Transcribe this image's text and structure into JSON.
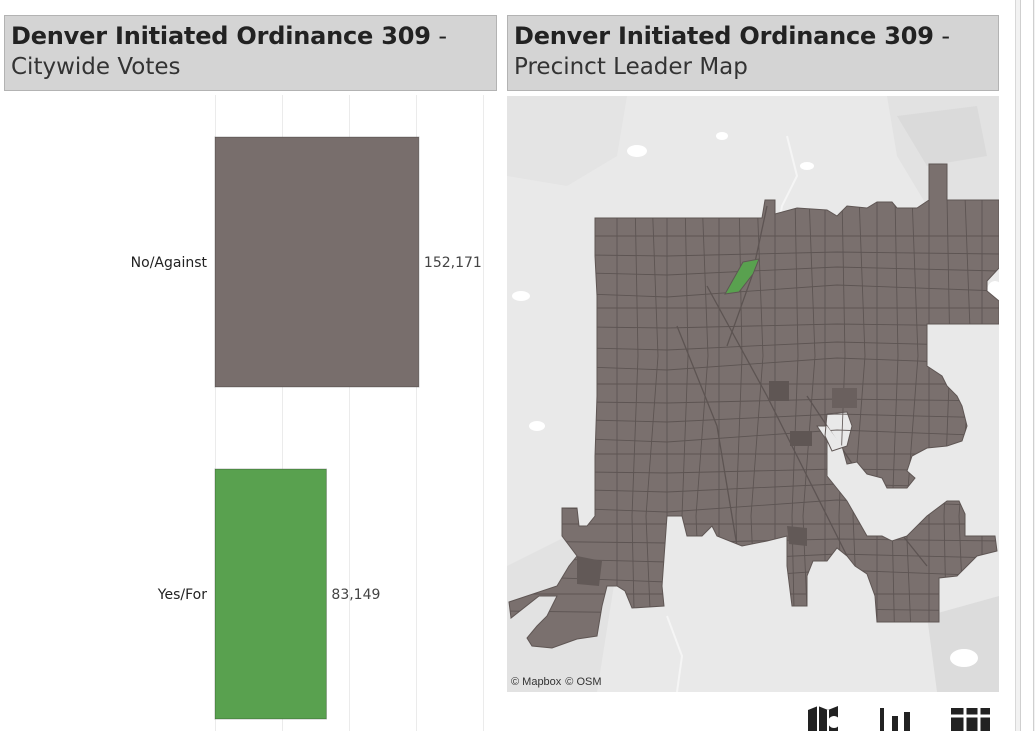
{
  "left_header": {
    "title_main": "Denver Initiated Ordinance 309",
    "title_dash": " -",
    "subtitle": "Citywide Votes"
  },
  "right_header": {
    "title_main": "Denver Initiated Ordinance 309",
    "title_dash": " -",
    "subtitle": "Precinct Leader Map"
  },
  "chart_data": {
    "type": "bar",
    "orientation": "horizontal",
    "categories": [
      "No/Against",
      "Yes/For"
    ],
    "values": [
      152171,
      83149
    ],
    "value_labels": [
      "152,171",
      "83,149"
    ],
    "colors": [
      "#786e6c",
      "#59a14f"
    ],
    "grid": true
  },
  "map": {
    "attribution_1": "© Mapbox",
    "attribution_2": "© OSM",
    "precinct_color": "#7a706e",
    "leader_highlight_color": "#59a14f"
  },
  "toolbar": {
    "icons": [
      "map-view-icon",
      "bar-chart-icon",
      "table-view-icon"
    ]
  }
}
